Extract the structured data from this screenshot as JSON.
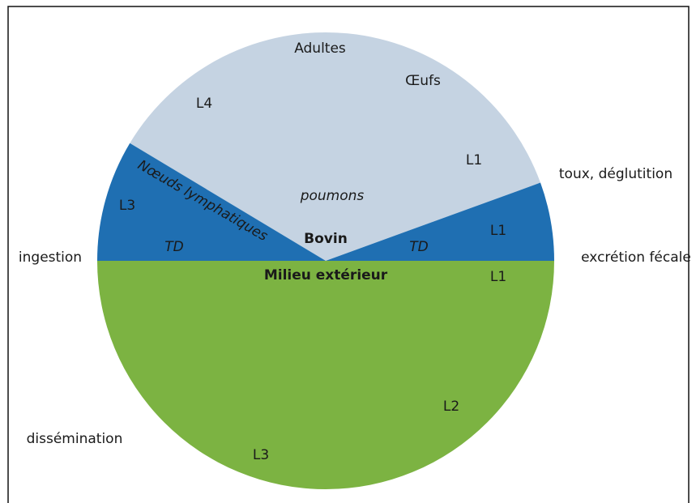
{
  "labels": [
    "Adultes",
    "Œufs",
    "L4",
    "L1",
    "toux, déglutition",
    "Nœuds lymphatiques",
    "poumons",
    "L3",
    "Bovin",
    "L1",
    "TD",
    "TD",
    "ingestion",
    "excrétion fécale",
    "Milieu extérieur",
    "L1",
    "L2",
    "dissémination",
    "L3"
  ]
}
